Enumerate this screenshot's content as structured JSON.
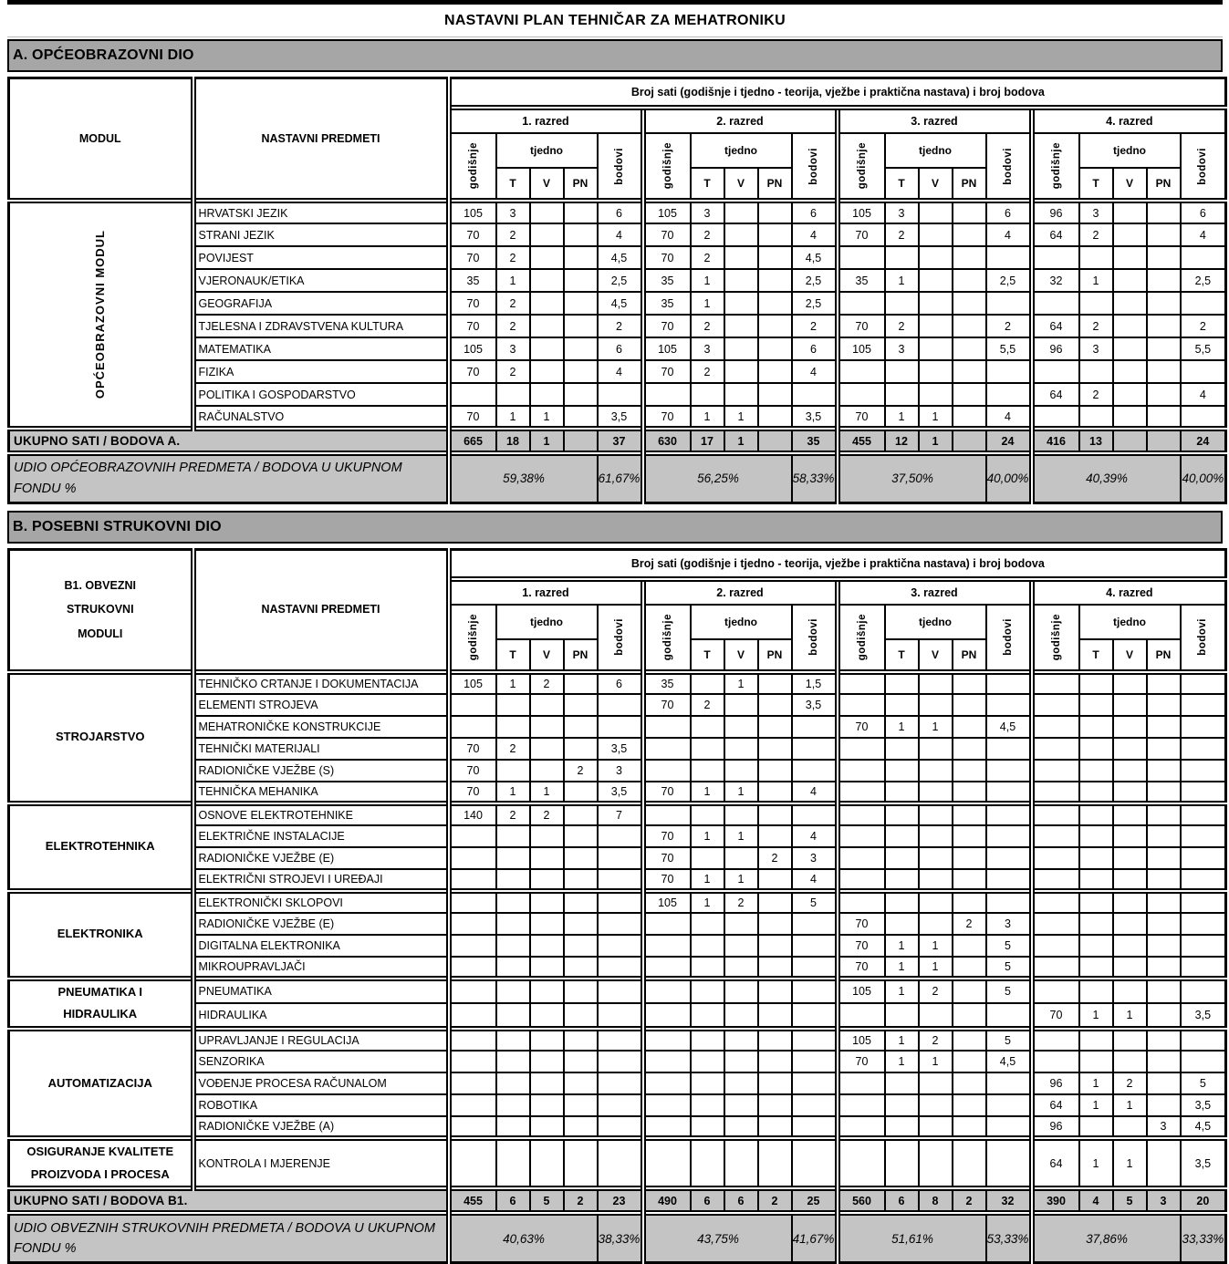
{
  "title": "NASTAVNI PLAN TEHNIČAR ZA MEHATRONIKU",
  "colors": {
    "section_bar_bg": "#a6a6a6",
    "summary_row_bg": "#c4c4c4",
    "border": "#000000"
  },
  "grade_header": {
    "span": "Broj sati (godišnje i tjedno - teorija, vježbe i praktična nastava) i broj bodova",
    "grades": [
      "1. razred",
      "2. razred",
      "3. razred",
      "4. razred"
    ],
    "yearly": "godišnje",
    "weekly": "tjedno",
    "weekly_cols": [
      "T",
      "V",
      "PN"
    ],
    "points": "bodovi"
  },
  "section_a": {
    "bar_label": "A. OPĆEOBRAZOVNI DIO",
    "col1_header_lines": [
      "MODUL"
    ],
    "col2_header": "NASTAVNI PREDMETI",
    "module_label": "OPĆEOBRAZOVNI MODUL",
    "rows": [
      {
        "subject": "HRVATSKI JEZIK",
        "cells": [
          "105",
          "3",
          "",
          "",
          "6",
          "105",
          "3",
          "",
          "",
          "6",
          "105",
          "3",
          "",
          "",
          "6",
          "96",
          "3",
          "",
          "",
          "6"
        ]
      },
      {
        "subject": "STRANI JEZIK",
        "cells": [
          "70",
          "2",
          "",
          "",
          "4",
          "70",
          "2",
          "",
          "",
          "4",
          "70",
          "2",
          "",
          "",
          "4",
          "64",
          "2",
          "",
          "",
          "4"
        ]
      },
      {
        "subject": "POVIJEST",
        "cells": [
          "70",
          "2",
          "",
          "",
          "4,5",
          "70",
          "2",
          "",
          "",
          "4,5",
          "",
          "",
          "",
          "",
          "",
          "",
          "",
          "",
          "",
          ""
        ]
      },
      {
        "subject": "VJERONAUK/ETIKA",
        "cells": [
          "35",
          "1",
          "",
          "",
          "2,5",
          "35",
          "1",
          "",
          "",
          "2,5",
          "35",
          "1",
          "",
          "",
          "2,5",
          "32",
          "1",
          "",
          "",
          "2,5"
        ]
      },
      {
        "subject": "GEOGRAFIJA",
        "cells": [
          "70",
          "2",
          "",
          "",
          "4,5",
          "35",
          "1",
          "",
          "",
          "2,5",
          "",
          "",
          "",
          "",
          "",
          "",
          "",
          "",
          "",
          ""
        ]
      },
      {
        "subject": "TJELESNA I ZDRAVSTVENA KULTURA",
        "cells": [
          "70",
          "2",
          "",
          "",
          "2",
          "70",
          "2",
          "",
          "",
          "2",
          "70",
          "2",
          "",
          "",
          "2",
          "64",
          "2",
          "",
          "",
          "2"
        ]
      },
      {
        "subject": "MATEMATIKA",
        "cells": [
          "105",
          "3",
          "",
          "",
          "6",
          "105",
          "3",
          "",
          "",
          "6",
          "105",
          "3",
          "",
          "",
          "5,5",
          "96",
          "3",
          "",
          "",
          "5,5"
        ]
      },
      {
        "subject": "FIZIKA",
        "cells": [
          "70",
          "2",
          "",
          "",
          "4",
          "70",
          "2",
          "",
          "",
          "4",
          "",
          "",
          "",
          "",
          "",
          "",
          "",
          "",
          "",
          ""
        ]
      },
      {
        "subject": "POLITIKA I GOSPODARSTVO",
        "cells": [
          "",
          "",
          "",
          "",
          "",
          "",
          "",
          "",
          "",
          "",
          "",
          "",
          "",
          "",
          "",
          "64",
          "2",
          "",
          "",
          "4"
        ]
      },
      {
        "subject": "RAČUNALSTVO",
        "cells": [
          "70",
          "1",
          "1",
          "",
          "3,5",
          "70",
          "1",
          "1",
          "",
          "3,5",
          "70",
          "1",
          "1",
          "",
          "4",
          "",
          "",
          "",
          "",
          ""
        ]
      }
    ],
    "total": {
      "label": "UKUPNO SATI / BODOVA A.",
      "cells": [
        "665",
        "18",
        "1",
        "",
        "37",
        "630",
        "17",
        "1",
        "",
        "35",
        "455",
        "12",
        "1",
        "",
        "24",
        "416",
        "13",
        "",
        "",
        "24"
      ]
    },
    "share": {
      "label": "UDIO OPĆEOBRAZOVNIH PREDMETA / BODOVA U UKUPNOM FONDU %",
      "values": [
        [
          "59,38%",
          "61,67%"
        ],
        [
          "56,25%",
          "58,33%"
        ],
        [
          "37,50%",
          "40,00%"
        ],
        [
          "40,39%",
          "40,00%"
        ]
      ]
    }
  },
  "section_b": {
    "bar_label": "B. POSEBNI STRUKOVNI DIO",
    "col1_header_lines": [
      "B1. OBVEZNI",
      "STRUKOVNI",
      "MODULI"
    ],
    "col2_header": "NASTAVNI PREDMETI",
    "modules": [
      {
        "name_lines": [
          "STROJARSTVO"
        ],
        "rows": [
          {
            "subject": "TEHNIČKO CRTANJE I DOKUMENTACIJA",
            "cells": [
              "105",
              "1",
              "2",
              "",
              "6",
              "35",
              "",
              "1",
              "",
              "1,5",
              "",
              "",
              "",
              "",
              "",
              "",
              "",
              "",
              "",
              ""
            ]
          },
          {
            "subject": "ELEMENTI STROJEVA",
            "cells": [
              "",
              "",
              "",
              "",
              "",
              "70",
              "2",
              "",
              "",
              "3,5",
              "",
              "",
              "",
              "",
              "",
              "",
              "",
              "",
              "",
              ""
            ]
          },
          {
            "subject": "MEHATRONIČKE KONSTRUKCIJE",
            "cells": [
              "",
              "",
              "",
              "",
              "",
              "",
              "",
              "",
              "",
              "",
              "70",
              "1",
              "1",
              "",
              "4,5",
              "",
              "",
              "",
              "",
              ""
            ]
          },
          {
            "subject": "TEHNIČKI MATERIJALI",
            "cells": [
              "70",
              "2",
              "",
              "",
              "3,5",
              "",
              "",
              "",
              "",
              "",
              "",
              "",
              "",
              "",
              "",
              "",
              "",
              "",
              "",
              ""
            ]
          },
          {
            "subject": "RADIONIČKE VJEŽBE (S)",
            "cells": [
              "70",
              "",
              "",
              "2",
              "3",
              "",
              "",
              "",
              "",
              "",
              "",
              "",
              "",
              "",
              "",
              "",
              "",
              "",
              "",
              ""
            ]
          },
          {
            "subject": "TEHNIČKA MEHANIKA",
            "cells": [
              "70",
              "1",
              "1",
              "",
              "3,5",
              "70",
              "1",
              "1",
              "",
              "4",
              "",
              "",
              "",
              "",
              "",
              "",
              "",
              "",
              "",
              ""
            ]
          }
        ]
      },
      {
        "name_lines": [
          "ELEKTROTEHNIKA"
        ],
        "rows": [
          {
            "subject": "OSNOVE ELEKTROTEHNIKE",
            "cells": [
              "140",
              "2",
              "2",
              "",
              "7",
              "",
              "",
              "",
              "",
              "",
              "",
              "",
              "",
              "",
              "",
              "",
              "",
              "",
              "",
              ""
            ]
          },
          {
            "subject": "ELEKTRIČNE INSTALACIJE",
            "cells": [
              "",
              "",
              "",
              "",
              "",
              "70",
              "1",
              "1",
              "",
              "4",
              "",
              "",
              "",
              "",
              "",
              "",
              "",
              "",
              "",
              ""
            ]
          },
          {
            "subject": "RADIONIČKE VJEŽBE (E)",
            "cells": [
              "",
              "",
              "",
              "",
              "",
              "70",
              "",
              "",
              "2",
              "3",
              "",
              "",
              "",
              "",
              "",
              "",
              "",
              "",
              "",
              ""
            ]
          },
          {
            "subject": "ELEKTRIČNI STROJEVI I UREĐAJI",
            "cells": [
              "",
              "",
              "",
              "",
              "",
              "70",
              "1",
              "1",
              "",
              "4",
              "",
              "",
              "",
              "",
              "",
              "",
              "",
              "",
              "",
              ""
            ]
          }
        ]
      },
      {
        "name_lines": [
          "ELEKTRONIKA"
        ],
        "rows": [
          {
            "subject": "ELEKTRONIČKI SKLOPOVI",
            "cells": [
              "",
              "",
              "",
              "",
              "",
              "105",
              "1",
              "2",
              "",
              "5",
              "",
              "",
              "",
              "",
              "",
              "",
              "",
              "",
              "",
              ""
            ]
          },
          {
            "subject": "RADIONIČKE VJEŽBE (E)",
            "cells": [
              "",
              "",
              "",
              "",
              "",
              "",
              "",
              "",
              "",
              "",
              "70",
              "",
              "",
              "2",
              "3",
              "",
              "",
              "",
              "",
              ""
            ]
          },
          {
            "subject": "DIGITALNA ELEKTRONIKA",
            "cells": [
              "",
              "",
              "",
              "",
              "",
              "",
              "",
              "",
              "",
              "",
              "70",
              "1",
              "1",
              "",
              "5",
              "",
              "",
              "",
              "",
              ""
            ]
          },
          {
            "subject": "MIKROUPRAVLJAČI",
            "cells": [
              "",
              "",
              "",
              "",
              "",
              "",
              "",
              "",
              "",
              "",
              "70",
              "1",
              "1",
              "",
              "5",
              "",
              "",
              "",
              "",
              ""
            ]
          }
        ]
      },
      {
        "name_lines": [
          "PNEUMATIKA I",
          "HIDRAULIKA"
        ],
        "rows": [
          {
            "subject": "PNEUMATIKA",
            "cells": [
              "",
              "",
              "",
              "",
              "",
              "",
              "",
              "",
              "",
              "",
              "105",
              "1",
              "2",
              "",
              "5",
              "",
              "",
              "",
              "",
              ""
            ]
          },
          {
            "subject": "HIDRAULIKA",
            "cells": [
              "",
              "",
              "",
              "",
              "",
              "",
              "",
              "",
              "",
              "",
              "",
              "",
              "",
              "",
              "",
              "70",
              "1",
              "1",
              "",
              "3,5"
            ]
          }
        ]
      },
      {
        "name_lines": [
          "AUTOMATIZACIJA"
        ],
        "rows": [
          {
            "subject": "UPRAVLJANJE I REGULACIJA",
            "cells": [
              "",
              "",
              "",
              "",
              "",
              "",
              "",
              "",
              "",
              "",
              "105",
              "1",
              "2",
              "",
              "5",
              "",
              "",
              "",
              "",
              ""
            ]
          },
          {
            "subject": "SENZORIKA",
            "cells": [
              "",
              "",
              "",
              "",
              "",
              "",
              "",
              "",
              "",
              "",
              "70",
              "1",
              "1",
              "",
              "4,5",
              "",
              "",
              "",
              "",
              ""
            ]
          },
          {
            "subject": "VOĐENJE PROCESA RAČUNALOM",
            "cells": [
              "",
              "",
              "",
              "",
              "",
              "",
              "",
              "",
              "",
              "",
              "",
              "",
              "",
              "",
              "",
              "96",
              "1",
              "2",
              "",
              "5"
            ]
          },
          {
            "subject": "ROBOTIKA",
            "cells": [
              "",
              "",
              "",
              "",
              "",
              "",
              "",
              "",
              "",
              "",
              "",
              "",
              "",
              "",
              "",
              "64",
              "1",
              "1",
              "",
              "3,5"
            ]
          },
          {
            "subject": "RADIONIČKE VJEŽBE  (A)",
            "cells": [
              "",
              "",
              "",
              "",
              "",
              "",
              "",
              "",
              "",
              "",
              "",
              "",
              "",
              "",
              "",
              "96",
              "",
              "",
              "3",
              "4,5"
            ]
          }
        ]
      },
      {
        "name_lines": [
          "OSIGURANJE KVALITETE",
          "PROIZVODA I PROCESA"
        ],
        "rows": [
          {
            "subject": "KONTROLA I MJERENJE",
            "cells": [
              "",
              "",
              "",
              "",
              "",
              "",
              "",
              "",
              "",
              "",
              "",
              "",
              "",
              "",
              "",
              "64",
              "1",
              "1",
              "",
              "3,5"
            ]
          }
        ]
      }
    ],
    "total": {
      "label": "UKUPNO SATI / BODOVA  B1.",
      "cells": [
        "455",
        "6",
        "5",
        "2",
        "23",
        "490",
        "6",
        "6",
        "2",
        "25",
        "560",
        "6",
        "8",
        "2",
        "32",
        "390",
        "4",
        "5",
        "3",
        "20"
      ]
    },
    "share": {
      "label": "UDIO OBVEZNIH STRUKOVNIH PREDMETA / BODOVA U UKUPNOM FONDU %",
      "values": [
        [
          "40,63%",
          "38,33%"
        ],
        [
          "43,75%",
          "41,67%"
        ],
        [
          "51,61%",
          "53,33%"
        ],
        [
          "37,86%",
          "33,33%"
        ]
      ]
    }
  }
}
